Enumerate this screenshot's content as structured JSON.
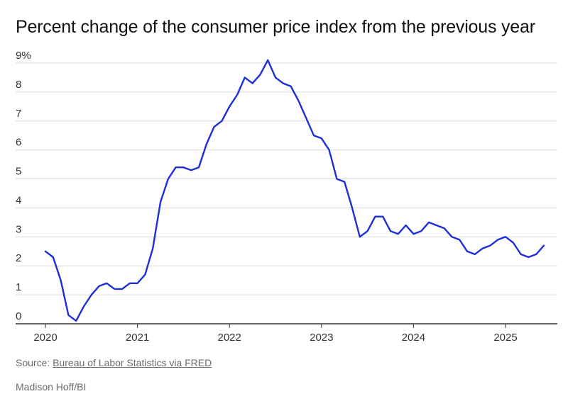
{
  "title": "Percent change of the consumer price index from the previous year",
  "footer": {
    "source_prefix": "Source: ",
    "source_link": "Bureau of Labor Statistics via FRED",
    "credit": "Madison Hoff/BI"
  },
  "chart_data": {
    "type": "line",
    "title": "Percent change of the consumer price index from the previous year",
    "xlabel": "",
    "ylabel": "",
    "ylim": [
      0,
      9
    ],
    "xlim": [
      2020.0,
      2025.6
    ],
    "grid": true,
    "line_color": "#1d2fd9",
    "grid_color": "#dcdcdc",
    "axis_color": "#333333",
    "y_ticks": [
      {
        "value": 0,
        "label": "0"
      },
      {
        "value": 1,
        "label": "1"
      },
      {
        "value": 2,
        "label": "2"
      },
      {
        "value": 3,
        "label": "3"
      },
      {
        "value": 4,
        "label": "4"
      },
      {
        "value": 5,
        "label": "5"
      },
      {
        "value": 6,
        "label": "6"
      },
      {
        "value": 7,
        "label": "7"
      },
      {
        "value": 8,
        "label": "8"
      },
      {
        "value": 9,
        "label": "9%"
      }
    ],
    "x_ticks": [
      {
        "value": 2020,
        "label": "2020"
      },
      {
        "value": 2021,
        "label": "2021"
      },
      {
        "value": 2022,
        "label": "2022"
      },
      {
        "value": 2023,
        "label": "2023"
      },
      {
        "value": 2024,
        "label": "2024"
      },
      {
        "value": 2025,
        "label": "2025"
      }
    ],
    "series": [
      {
        "x": [
          "2020-01",
          "2020-02",
          "2020-03",
          "2020-04",
          "2020-05",
          "2020-06",
          "2020-07",
          "2020-08",
          "2020-09",
          "2020-10",
          "2020-11",
          "2020-12",
          "2021-01",
          "2021-02",
          "2021-03",
          "2021-04",
          "2021-05",
          "2021-06",
          "2021-07",
          "2021-08",
          "2021-09",
          "2021-10",
          "2021-11",
          "2021-12",
          "2022-01",
          "2022-02",
          "2022-03",
          "2022-04",
          "2022-05",
          "2022-06",
          "2022-07",
          "2022-08",
          "2022-09",
          "2022-10",
          "2022-11",
          "2022-12",
          "2023-01",
          "2023-02",
          "2023-03",
          "2023-04",
          "2023-05",
          "2023-06",
          "2023-07",
          "2023-08",
          "2023-09",
          "2023-10",
          "2023-11",
          "2023-12",
          "2024-01",
          "2024-02",
          "2024-03",
          "2024-04",
          "2024-05",
          "2024-06",
          "2024-07",
          "2024-08",
          "2024-09",
          "2024-10",
          "2024-11",
          "2024-12",
          "2025-01",
          "2025-02",
          "2025-03",
          "2025-04",
          "2025-05",
          "2025-06"
        ],
        "values": [
          2.5,
          2.3,
          1.5,
          0.3,
          0.1,
          0.6,
          1.0,
          1.3,
          1.4,
          1.2,
          1.2,
          1.4,
          1.4,
          1.7,
          2.6,
          4.2,
          5.0,
          5.4,
          5.4,
          5.3,
          5.4,
          6.2,
          6.8,
          7.0,
          7.5,
          7.9,
          8.5,
          8.3,
          8.6,
          9.1,
          8.5,
          8.3,
          8.2,
          7.7,
          7.1,
          6.5,
          6.4,
          6.0,
          5.0,
          4.9,
          4.0,
          3.0,
          3.2,
          3.7,
          3.7,
          3.2,
          3.1,
          3.4,
          3.1,
          3.2,
          3.5,
          3.4,
          3.3,
          3.0,
          2.9,
          2.5,
          2.4,
          2.6,
          2.7,
          2.9,
          3.0,
          2.8,
          2.4,
          2.3,
          2.4,
          2.7
        ]
      }
    ]
  }
}
